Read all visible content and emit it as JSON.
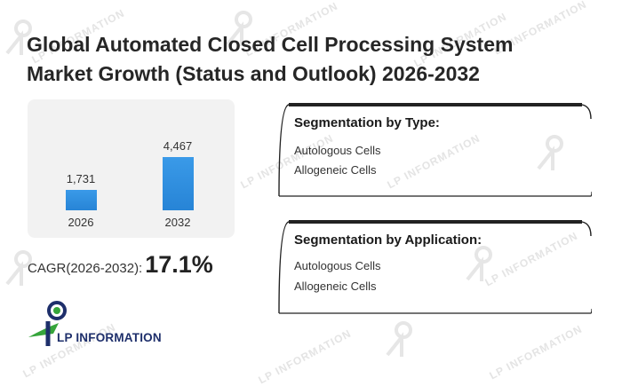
{
  "title_line1": "Global Automated Closed Cell Processing System",
  "title_line2": "Market Growth (Status and Outlook) 2026-2032",
  "chart_data": {
    "type": "bar",
    "categories": [
      "2026",
      "2032"
    ],
    "values": [
      1731,
      4467
    ],
    "value_labels": [
      "1,731",
      "4,467"
    ],
    "color": "#2784d6"
  },
  "cagr": {
    "label": "CAGR(2026-2032):",
    "value": "17.1%"
  },
  "segment_type": {
    "title": "Segmentation by Type:",
    "items": [
      "Autologous Cells",
      "Allogeneic Cells"
    ]
  },
  "segment_application": {
    "title": "Segmentation by Application:",
    "items": [
      "Autologous Cells",
      "Allogeneic Cells"
    ]
  },
  "brand": {
    "name": "LP INFORMATION",
    "colors": {
      "green": "#36a53b",
      "blue": "#1e2f6b"
    }
  },
  "watermark_text": "LP INFORMATION"
}
